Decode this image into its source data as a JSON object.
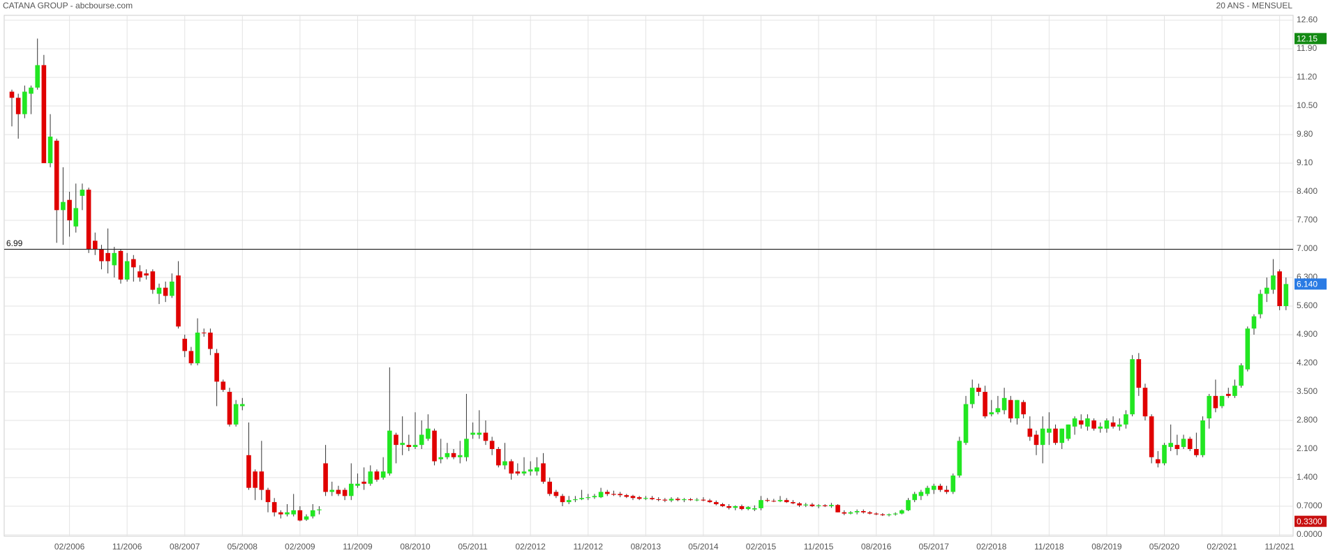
{
  "chart_data": {
    "type": "candlestick",
    "title": "CATANA GROUP - abcbourse.com",
    "subtitle": "20 ANS - MENSUEL",
    "up_color": "#22e622",
    "down_color": "#e00000",
    "grid": true,
    "categories": [
      null,
      null,
      null,
      null,
      null,
      null,
      null,
      null,
      null,
      "02/2006",
      null,
      null,
      null,
      null,
      null,
      null,
      null,
      null,
      "11/2006",
      null,
      null,
      null,
      null,
      null,
      null,
      null,
      null,
      "08/2007",
      null,
      null,
      null,
      null,
      null,
      null,
      null,
      null,
      "05/2008",
      null,
      null,
      null,
      null,
      null,
      null,
      null,
      null,
      "02/2009",
      null,
      null,
      null,
      null,
      null,
      null,
      null,
      null,
      "11/2009",
      null,
      null,
      null,
      null,
      null,
      null,
      null,
      null,
      "08/2010",
      null,
      null,
      null,
      null,
      null,
      null,
      null,
      null,
      "05/2011",
      null,
      null,
      null,
      null,
      null,
      null,
      null,
      null,
      "02/2012",
      null,
      null,
      null,
      null,
      null,
      null,
      null,
      null,
      "11/2012",
      null,
      null,
      null,
      null,
      null,
      null,
      null,
      null,
      "08/2013",
      null,
      null,
      null,
      null,
      null,
      null,
      null,
      null,
      "05/2014",
      null,
      null,
      null,
      null,
      null,
      null,
      null,
      null,
      "02/2015",
      null,
      null,
      null,
      null,
      null,
      null,
      null,
      null,
      "11/2015",
      null,
      null,
      null,
      null,
      null,
      null,
      null,
      null,
      "08/2016",
      null,
      null,
      null,
      null,
      null,
      null,
      null,
      null,
      "05/2017",
      null,
      null,
      null,
      null,
      null,
      null,
      null,
      null,
      "02/2018",
      null,
      null,
      null,
      null,
      null,
      null,
      null,
      null,
      "11/2018",
      null,
      null,
      null,
      null,
      null,
      null,
      null,
      null,
      "08/2019",
      null,
      null,
      null,
      null,
      null,
      null,
      null,
      null,
      "05/2020",
      null,
      null,
      null,
      null,
      null,
      null,
      null,
      null,
      "02/2021",
      null,
      null,
      null,
      null,
      null,
      null,
      null,
      null,
      "11/2021",
      null
    ],
    "open": [
      10.85,
      10.7,
      10.3,
      10.8,
      10.95,
      11.5,
      9.1,
      9.65,
      7.95,
      8.2,
      7.55,
      8.3,
      8.45,
      7.2,
      7.0,
      6.9,
      6.6,
      6.95,
      6.25,
      6.75,
      6.45,
      6.4,
      6.45,
      5.9,
      6.05,
      5.85,
      6.35,
      4.8,
      4.5,
      4.2,
      4.95,
      4.95,
      4.45,
      3.75,
      3.5,
      2.7,
      3.15,
      1.95,
      1.55,
      1.55,
      1.1,
      0.8,
      0.55,
      0.5,
      0.5,
      0.6,
      0.37,
      0.45,
      0.6,
      1.75,
      1.05,
      1.1,
      1.1,
      0.95,
      1.2,
      1.3,
      1.25,
      1.55,
      1.4,
      1.5,
      2.45,
      2.2,
      2.2,
      2.15,
      2.2,
      2.35,
      2.55,
      1.85,
      1.9,
      2.0,
      1.9,
      1.9,
      2.45,
      2.45,
      2.5,
      2.3,
      2.1,
      1.7,
      1.8,
      1.55,
      1.5,
      1.55,
      1.55,
      1.75,
      1.3,
      1.05,
      0.95,
      0.8,
      0.85,
      0.87,
      0.9,
      0.92,
      0.92,
      1.05,
      1.0,
      1.0,
      0.97,
      0.95,
      0.92,
      0.88,
      0.9,
      0.87,
      0.86,
      0.84,
      0.88,
      0.85,
      0.87,
      0.85,
      0.86,
      0.84,
      0.8,
      0.75,
      0.7,
      0.66,
      0.7,
      0.63,
      0.62,
      0.65,
      0.85,
      0.83,
      0.82,
      0.85,
      0.8,
      0.77,
      0.72,
      0.74,
      0.7,
      0.72,
      0.7,
      0.73,
      0.55,
      0.52,
      0.55,
      0.58,
      0.55,
      0.52,
      0.5,
      0.48,
      0.5,
      0.52,
      0.6,
      0.85,
      0.95,
      1.0,
      1.1,
      1.2,
      1.1,
      1.05,
      1.45,
      2.25,
      3.2,
      3.6,
      3.5,
      2.95,
      3.0,
      3.05,
      3.3,
      2.85,
      3.25,
      2.6,
      2.45,
      2.2,
      2.5,
      2.6,
      2.25,
      2.35,
      2.65,
      2.8,
      2.65,
      2.8,
      2.6,
      2.6,
      2.75,
      2.65,
      2.7,
      2.95,
      4.3,
      3.6,
      2.9,
      1.85,
      1.75,
      2.15,
      2.2,
      2.15,
      2.35,
      2.1,
      1.95,
      2.85,
      3.4,
      3.15,
      3.45,
      3.4,
      3.65,
      4.05,
      5.05,
      5.4,
      5.9,
      6.0,
      6.45,
      5.6
    ],
    "high": [
      10.9,
      10.8,
      11.0,
      11.0,
      12.15,
      11.75,
      10.3,
      9.7,
      9.0,
      8.4,
      8.6,
      8.6,
      8.5,
      7.4,
      7.1,
      7.5,
      7.05,
      7.0,
      6.9,
      6.85,
      6.6,
      6.5,
      6.5,
      6.15,
      6.2,
      6.4,
      6.7,
      4.9,
      4.6,
      5.3,
      5.05,
      5.05,
      4.55,
      3.8,
      3.6,
      3.3,
      3.35,
      2.75,
      1.6,
      2.3,
      1.15,
      0.9,
      0.6,
      0.75,
      1.0,
      0.7,
      0.5,
      0.75,
      0.7,
      2.2,
      1.3,
      1.2,
      1.15,
      1.75,
      1.5,
      1.65,
      1.7,
      1.6,
      1.9,
      4.1,
      2.5,
      2.9,
      2.45,
      3.0,
      2.8,
      2.95,
      2.6,
      2.35,
      2.25,
      2.1,
      2.3,
      3.45,
      2.75,
      3.05,
      2.8,
      2.4,
      2.15,
      2.25,
      1.85,
      1.75,
      1.9,
      1.8,
      1.9,
      2.0,
      1.4,
      1.1,
      1.0,
      0.95,
      0.95,
      1.1,
      1.0,
      1.0,
      1.15,
      1.1,
      1.08,
      1.05,
      1.0,
      0.98,
      0.95,
      0.95,
      0.95,
      0.92,
      0.9,
      0.92,
      0.92,
      0.9,
      0.9,
      0.9,
      0.92,
      0.88,
      0.84,
      0.78,
      0.75,
      0.72,
      0.74,
      0.7,
      0.72,
      0.95,
      0.9,
      0.88,
      0.95,
      0.9,
      0.85,
      0.8,
      0.78,
      0.78,
      0.75,
      0.75,
      0.78,
      0.75,
      0.6,
      0.58,
      0.62,
      0.62,
      0.58,
      0.55,
      0.53,
      0.52,
      0.55,
      0.62,
      0.9,
      1.05,
      1.1,
      1.2,
      1.25,
      1.25,
      1.2,
      1.5,
      2.4,
      3.4,
      3.8,
      3.7,
      3.65,
      3.3,
      3.4,
      3.6,
      3.4,
      3.3,
      3.3,
      2.9,
      2.55,
      2.9,
      3.0,
      2.7,
      2.6,
      2.7,
      2.9,
      2.95,
      2.95,
      2.85,
      2.75,
      2.85,
      2.9,
      2.85,
      3.05,
      4.4,
      4.45,
      3.7,
      2.95,
      2.05,
      2.25,
      2.7,
      2.45,
      2.45,
      2.4,
      2.5,
      2.9,
      3.45,
      3.8,
      3.4,
      3.6,
      3.8,
      4.2,
      5.1,
      5.4,
      6.0,
      6.3,
      6.75,
      6.5,
      6.3
    ],
    "low": [
      10.0,
      9.7,
      10.2,
      10.3,
      10.9,
      9.1,
      9.0,
      7.15,
      7.1,
      7.3,
      7.4,
      7.95,
      6.9,
      6.85,
      6.5,
      6.4,
      6.3,
      6.15,
      6.2,
      6.2,
      6.2,
      6.25,
      5.9,
      5.65,
      5.7,
      5.8,
      5.05,
      4.35,
      4.15,
      4.15,
      4.85,
      4.4,
      3.15,
      3.5,
      2.65,
      2.65,
      3.05,
      1.1,
      0.85,
      0.85,
      0.55,
      0.45,
      0.4,
      0.45,
      0.45,
      0.33,
      0.34,
      0.4,
      0.5,
      0.95,
      0.95,
      0.95,
      0.85,
      0.85,
      1.15,
      1.1,
      1.2,
      1.3,
      1.35,
      1.45,
      1.75,
      1.95,
      2.05,
      2.1,
      2.1,
      2.3,
      1.7,
      1.75,
      1.85,
      1.85,
      1.75,
      1.8,
      2.35,
      2.35,
      2.2,
      1.95,
      1.65,
      1.6,
      1.35,
      1.45,
      1.45,
      1.45,
      1.45,
      1.25,
      0.95,
      0.9,
      0.7,
      0.75,
      0.8,
      0.85,
      0.85,
      0.88,
      0.9,
      0.95,
      0.95,
      0.92,
      0.9,
      0.85,
      0.85,
      0.85,
      0.85,
      0.82,
      0.8,
      0.8,
      0.82,
      0.8,
      0.83,
      0.82,
      0.82,
      0.78,
      0.72,
      0.68,
      0.62,
      0.6,
      0.6,
      0.6,
      0.58,
      0.6,
      0.8,
      0.8,
      0.8,
      0.78,
      0.75,
      0.68,
      0.68,
      0.68,
      0.65,
      0.68,
      0.66,
      0.55,
      0.48,
      0.5,
      0.5,
      0.52,
      0.5,
      0.48,
      0.46,
      0.45,
      0.47,
      0.5,
      0.58,
      0.8,
      0.85,
      0.95,
      1.0,
      1.05,
      1.0,
      1.0,
      1.4,
      2.2,
      3.1,
      3.4,
      2.85,
      2.9,
      2.95,
      2.95,
      2.75,
      2.7,
      2.85,
      2.3,
      1.95,
      1.75,
      2.2,
      2.2,
      2.1,
      2.3,
      2.45,
      2.6,
      2.55,
      2.55,
      2.5,
      2.5,
      2.6,
      2.55,
      2.6,
      2.9,
      3.4,
      2.8,
      1.75,
      1.65,
      1.7,
      2.05,
      1.95,
      2.1,
      2.05,
      1.9,
      1.9,
      2.6,
      3.0,
      3.1,
      3.35,
      3.35,
      3.6,
      4.0,
      4.9,
      5.3,
      5.7,
      5.9,
      5.5,
      5.5
    ],
    "close": [
      10.7,
      10.3,
      10.85,
      10.95,
      11.5,
      9.1,
      9.75,
      7.95,
      8.15,
      7.7,
      8.0,
      8.45,
      7.0,
      7.0,
      6.7,
      6.7,
      6.9,
      6.25,
      6.7,
      6.55,
      6.3,
      6.35,
      6.0,
      6.05,
      5.85,
      6.2,
      5.1,
      4.5,
      4.2,
      4.95,
      4.95,
      4.55,
      3.75,
      3.55,
      2.7,
      3.2,
      3.2,
      1.15,
      1.15,
      1.1,
      0.8,
      0.55,
      0.5,
      0.55,
      0.6,
      0.35,
      0.45,
      0.6,
      0.62,
      1.05,
      1.1,
      1.0,
      0.95,
      1.25,
      1.25,
      1.25,
      1.55,
      1.35,
      1.55,
      2.55,
      2.2,
      2.25,
      2.15,
      2.2,
      2.45,
      2.6,
      1.8,
      1.9,
      2.0,
      1.9,
      1.95,
      2.35,
      2.5,
      2.5,
      2.3,
      2.1,
      1.7,
      1.8,
      1.5,
      1.5,
      1.55,
      1.6,
      1.65,
      1.3,
      1.0,
      0.95,
      0.8,
      0.85,
      0.87,
      0.9,
      0.92,
      0.95,
      1.05,
      1.0,
      0.98,
      0.97,
      0.93,
      0.9,
      0.88,
      0.9,
      0.87,
      0.86,
      0.84,
      0.88,
      0.85,
      0.87,
      0.85,
      0.86,
      0.84,
      0.8,
      0.75,
      0.7,
      0.66,
      0.7,
      0.63,
      0.68,
      0.65,
      0.85,
      0.83,
      0.82,
      0.85,
      0.8,
      0.77,
      0.72,
      0.74,
      0.7,
      0.72,
      0.7,
      0.73,
      0.55,
      0.52,
      0.55,
      0.58,
      0.55,
      0.52,
      0.5,
      0.48,
      0.5,
      0.52,
      0.6,
      0.85,
      1.0,
      1.05,
      1.15,
      1.2,
      1.1,
      1.05,
      1.45,
      2.3,
      3.2,
      3.6,
      3.5,
      2.9,
      3.0,
      3.1,
      3.35,
      2.85,
      3.3,
      2.95,
      2.4,
      2.2,
      2.6,
      2.6,
      2.25,
      2.6,
      2.7,
      2.85,
      2.7,
      2.85,
      2.6,
      2.65,
      2.8,
      2.65,
      2.7,
      2.95,
      4.3,
      3.6,
      2.9,
      1.9,
      1.75,
      2.2,
      2.25,
      2.1,
      2.35,
      2.1,
      1.95,
      2.8,
      3.4,
      3.1,
      3.4,
      3.4,
      3.65,
      4.15,
      5.05,
      5.35,
      5.9,
      6.05,
      6.35,
      5.6,
      6.14
    ],
    "ylim": [
      0,
      12.6
    ],
    "yticks": [
      {
        "value": 0,
        "label": "0.0000"
      },
      {
        "value": 0.7,
        "label": "0.7000"
      },
      {
        "value": 1.4,
        "label": "1.400"
      },
      {
        "value": 2.1,
        "label": "2.100"
      },
      {
        "value": 2.8,
        "label": "2.800"
      },
      {
        "value": 3.5,
        "label": "3.500"
      },
      {
        "value": 4.2,
        "label": "4.200"
      },
      {
        "value": 4.9,
        "label": "4.900"
      },
      {
        "value": 5.6,
        "label": "5.600"
      },
      {
        "value": 6.3,
        "label": "6.300"
      },
      {
        "value": 7,
        "label": "7.000"
      },
      {
        "value": 7.7,
        "label": "7.700"
      },
      {
        "value": 8.4,
        "label": "8.400"
      },
      {
        "value": 9.1,
        "label": "9.10"
      },
      {
        "value": 9.8,
        "label": "9.80"
      },
      {
        "value": 10.5,
        "label": "10.50"
      },
      {
        "value": 11.2,
        "label": "11.20"
      },
      {
        "value": 11.9,
        "label": "11.90"
      },
      {
        "value": 12.6,
        "label": "12.60"
      }
    ],
    "hline": {
      "value": 6.99
    },
    "price_tags": [
      {
        "value": 12.15,
        "color": "#138a13"
      },
      {
        "value": 6.14,
        "label": "6.140",
        "color": "#2a7be4"
      },
      {
        "value": 0.33,
        "label": "0.3300",
        "color": "#c81010"
      }
    ]
  }
}
